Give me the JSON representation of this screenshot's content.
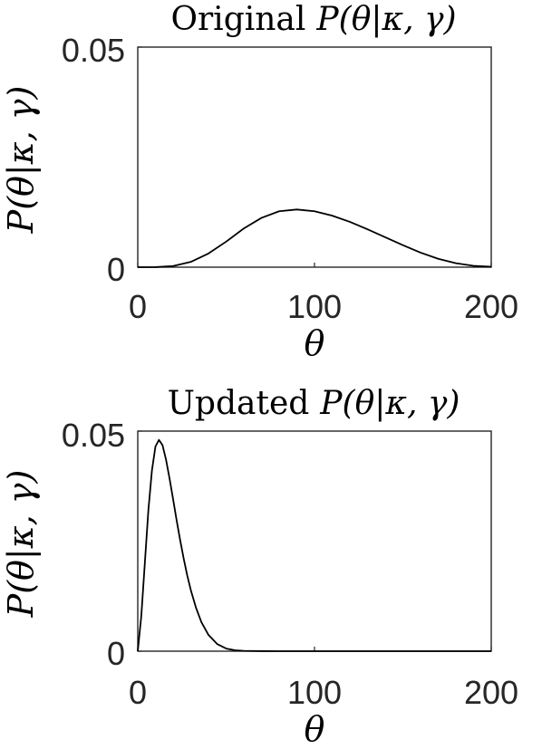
{
  "chart_data": [
    {
      "type": "line",
      "title_prefix": "Original",
      "title_math": "P(θ|κ, γ)",
      "xlabel": "θ",
      "ylabel": "P(θ|κ, γ)",
      "xlim": [
        0,
        200
      ],
      "ylim": [
        0,
        0.05
      ],
      "xticks": [
        "0",
        "100",
        "200"
      ],
      "yticks": [
        "0",
        "0.05"
      ],
      "grid": false,
      "series": [
        {
          "color": "#000000",
          "x": [
            0,
            10,
            20,
            30,
            40,
            50,
            60,
            70,
            80,
            90,
            100,
            110,
            120,
            130,
            140,
            150,
            160,
            170,
            180,
            190,
            200
          ],
          "y": [
            0,
            1e-05,
            0.00025,
            0.0012,
            0.0031,
            0.0058,
            0.0088,
            0.0112,
            0.0127,
            0.0131,
            0.0127,
            0.0117,
            0.0103,
            0.0086,
            0.0068,
            0.005,
            0.0033,
            0.0019,
            0.0009,
            0.0003,
            0.0001
          ]
        }
      ]
    },
    {
      "type": "line",
      "title_prefix": "Updated",
      "title_math": "P(θ|κ, γ)",
      "xlabel": "θ",
      "ylabel": "P(θ|κ, γ)",
      "xlim": [
        0,
        200
      ],
      "ylim": [
        0,
        0.05
      ],
      "xticks": [
        "0",
        "100",
        "200"
      ],
      "yticks": [
        "0",
        "0.05"
      ],
      "grid": false,
      "series": [
        {
          "color": "#000000",
          "x": [
            0,
            2,
            4,
            6,
            8,
            10,
            12,
            14,
            16,
            18,
            20,
            22,
            24,
            26,
            28,
            30,
            33,
            36,
            40,
            45,
            50,
            55,
            60,
            70,
            80,
            100,
            150,
            200
          ],
          "y": [
            0,
            0.008,
            0.02,
            0.032,
            0.041,
            0.0465,
            0.048,
            0.0468,
            0.0435,
            0.0392,
            0.0345,
            0.0297,
            0.0252,
            0.021,
            0.0172,
            0.0139,
            0.0098,
            0.0066,
            0.0037,
            0.0016,
            0.0006,
            0.0002,
            7e-05,
            1e-05,
            0,
            0,
            0,
            0
          ]
        }
      ]
    }
  ]
}
